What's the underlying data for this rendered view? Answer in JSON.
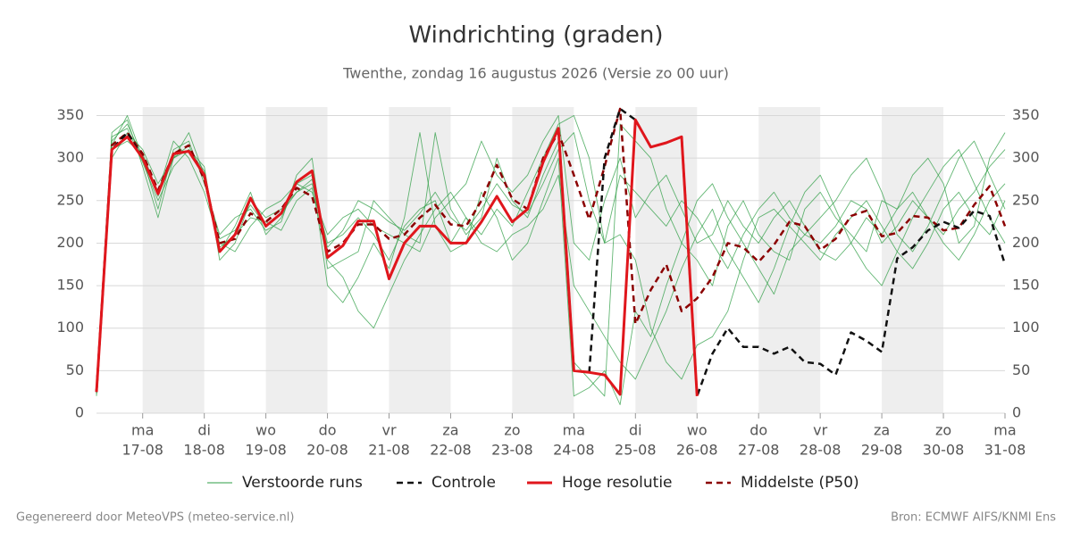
{
  "chart_data": {
    "type": "line",
    "title": "Windrichting (graden)",
    "subtitle": "Twenthe, zondag 16 augustus 2026 (Versie zo 00 uur)",
    "footer_left": "Gegenereerd door MeteoVPS (meteo-service.nl)",
    "footer_right": "Bron: ECMWF AIFS/KNMI Ens",
    "categories": [
      null,
      null,
      null,
      "ma",
      null,
      null,
      null,
      "di",
      null,
      null,
      null,
      "wo",
      null,
      null,
      null,
      "do",
      null,
      null,
      null,
      "vr",
      null,
      null,
      null,
      "za",
      null,
      null,
      null,
      "zo",
      null,
      null,
      null,
      "ma",
      null,
      null,
      null,
      "di",
      null,
      null,
      null,
      "wo",
      null,
      null,
      null,
      "do",
      null,
      null,
      null,
      "vr",
      null,
      null,
      null,
      "za",
      null,
      null,
      null,
      "zo",
      null,
      null,
      null,
      "ma"
    ],
    "category_dates": [
      null,
      null,
      null,
      "17-08",
      null,
      null,
      null,
      "18-08",
      null,
      null,
      null,
      "19-08",
      null,
      null,
      null,
      "20-08",
      null,
      null,
      null,
      "21-08",
      null,
      null,
      null,
      "22-08",
      null,
      null,
      null,
      "23-08",
      null,
      null,
      null,
      "24-08",
      null,
      null,
      null,
      "25-08",
      null,
      null,
      null,
      "26-08",
      null,
      null,
      null,
      "27-08",
      null,
      null,
      null,
      "28-08",
      null,
      null,
      null,
      "29-08",
      null,
      null,
      null,
      "30-08",
      null,
      null,
      null,
      "31-08"
    ],
    "ylim": [
      0,
      360
    ],
    "yticks": [
      0,
      50,
      100,
      150,
      200,
      250,
      300,
      350
    ],
    "grid": true,
    "legend": "bottom",
    "series": [
      {
        "name": "Verstoorde runs",
        "color": "#2e9e44",
        "runs": [
          [
            30,
            320,
            340,
            300,
            240,
            310,
            320,
            270,
            210,
            230,
            240,
            215,
            225,
            280,
            300,
            170,
            180,
            190,
            250,
            230,
            210,
            200,
            330,
            240,
            210,
            230,
            300,
            250,
            230,
            280,
            320,
            60,
            40,
            20,
            340,
            320,
            300,
            240,
            200,
            180,
            150,
            220,
            250,
            210,
            190,
            180,
            240,
            260,
            230,
            210,
            190,
            250,
            240,
            280,
            300,
            270,
            200,
            220,
            300,
            330
          ],
          [
            20,
            300,
            330,
            310,
            270,
            300,
            310,
            290,
            180,
            200,
            250,
            230,
            240,
            260,
            270,
            200,
            210,
            230,
            210,
            180,
            220,
            240,
            250,
            200,
            230,
            210,
            240,
            220,
            260,
            300,
            340,
            350,
            300,
            200,
            210,
            180,
            100,
            60,
            40,
            80,
            90,
            120,
            180,
            230,
            240,
            220,
            200,
            180,
            210,
            230,
            250,
            220,
            190,
            170,
            200,
            240,
            260,
            230,
            210,
            250
          ],
          [
            35,
            330,
            345,
            290,
            230,
            300,
            330,
            280,
            190,
            220,
            260,
            210,
            230,
            270,
            280,
            150,
            130,
            160,
            200,
            170,
            230,
            330,
            220,
            190,
            200,
            260,
            230,
            180,
            200,
            250,
            300,
            20,
            30,
            50,
            10,
            120,
            90,
            150,
            200,
            250,
            270,
            230,
            200,
            170,
            140,
            190,
            210,
            230,
            250,
            280,
            300,
            260,
            210,
            190,
            220,
            260,
            300,
            320,
            280,
            240
          ],
          [
            25,
            310,
            320,
            305,
            260,
            320,
            300,
            260,
            200,
            190,
            220,
            240,
            250,
            270,
            260,
            210,
            230,
            240,
            220,
            210,
            200,
            190,
            230,
            250,
            270,
            320,
            280,
            260,
            280,
            320,
            350,
            200,
            180,
            250,
            300,
            230,
            260,
            280,
            240,
            200,
            210,
            250,
            220,
            200,
            230,
            250,
            220,
            190,
            180,
            200,
            230,
            210,
            240,
            260,
            230,
            200,
            180,
            210,
            250,
            270
          ],
          [
            28,
            325,
            335,
            295,
            250,
            290,
            310,
            285,
            195,
            210,
            230,
            225,
            215,
            250,
            265,
            180,
            160,
            120,
            100,
            140,
            180,
            210,
            240,
            260,
            230,
            200,
            190,
            210,
            220,
            240,
            280,
            150,
            120,
            90,
            60,
            40,
            80,
            120,
            170,
            210,
            240,
            190,
            160,
            130,
            170,
            220,
            260,
            280,
            240,
            200,
            170,
            150,
            190,
            230,
            260,
            290,
            310,
            270,
            230,
            200
          ],
          [
            22,
            315,
            350,
            300,
            255,
            300,
            315,
            275,
            205,
            215,
            245,
            220,
            235,
            260,
            275,
            195,
            215,
            250,
            240,
            225,
            215,
            235,
            260,
            230,
            215,
            240,
            270,
            245,
            235,
            270,
            310,
            330,
            250,
            200,
            280,
            260,
            240,
            220,
            250,
            230,
            200,
            170,
            210,
            240,
            260,
            230,
            210,
            200,
            220,
            250,
            240,
            200,
            220,
            250,
            230,
            210,
            240,
            260,
            290,
            310
          ]
        ]
      },
      {
        "name": "Controle",
        "color": "#111111",
        "dashed": true,
        "values": [
          25,
          310,
          330,
          300,
          258,
          305,
          308,
          280,
          190,
          210,
          253,
          220,
          235,
          272,
          285,
          183,
          197,
          226,
          226,
          158,
          200,
          220,
          220,
          200,
          200,
          225,
          255,
          225,
          240,
          295,
          335,
          50,
          48,
          300,
          358,
          345,
          313,
          318,
          325,
          20,
          70,
          100,
          78,
          78,
          70,
          78,
          60,
          58,
          45,
          95,
          85,
          72,
          182,
          195,
          215,
          225,
          218,
          238,
          232,
          175
        ]
      },
      {
        "name": "Hoge resolutie",
        "color": "#e0161c",
        "values": [
          25,
          310,
          325,
          300,
          258,
          305,
          308,
          280,
          190,
          210,
          253,
          220,
          235,
          272,
          285,
          183,
          197,
          226,
          226,
          158,
          200,
          220,
          220,
          200,
          200,
          225,
          255,
          225,
          240,
          295,
          335,
          50,
          48,
          45,
          22,
          345,
          313,
          318,
          325,
          20,
          null,
          null,
          null,
          null,
          null,
          null,
          null,
          null,
          null,
          null,
          null,
          null,
          null,
          null,
          null,
          null,
          null,
          null,
          null,
          null
        ]
      },
      {
        "name": "Middelste (P50)",
        "color": "#8b0000",
        "dashed": true,
        "values": [
          25,
          315,
          330,
          305,
          262,
          305,
          315,
          275,
          200,
          205,
          235,
          225,
          240,
          265,
          255,
          190,
          200,
          222,
          222,
          205,
          210,
          230,
          245,
          222,
          220,
          250,
          292,
          252,
          240,
          300,
          330,
          280,
          228,
          290,
          358,
          105,
          145,
          175,
          120,
          135,
          160,
          200,
          195,
          178,
          198,
          225,
          220,
          192,
          205,
          232,
          238,
          208,
          212,
          232,
          230,
          215,
          218,
          245,
          267,
          220
        ]
      }
    ]
  }
}
